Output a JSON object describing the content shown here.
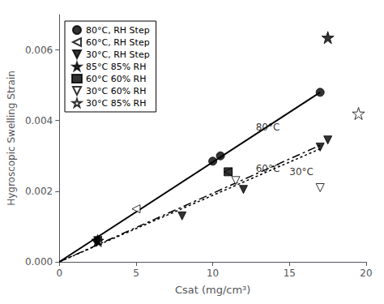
{
  "chart_data": {
    "type": "scatter",
    "xlabel": "Csat (mg/cm³)",
    "ylabel": "Hygroscopic Swelling Strain",
    "xlim": [
      0,
      20
    ],
    "ylim": [
      0,
      0.007
    ],
    "xticks": [
      0,
      5,
      10,
      15,
      20
    ],
    "yticks": [
      {
        "value": 0,
        "label": "0.000"
      },
      0.002,
      0.004,
      0.006
    ],
    "grid": false,
    "legend": "upper left",
    "series": [
      {
        "type": "line",
        "color": "black",
        "line_style": "solid",
        "x": [
          0,
          17.0
        ],
        "values": [
          0.0,
          0.0048
        ]
      },
      {
        "type": "line",
        "color": "black",
        "line_style": "dashdot",
        "x": [
          0,
          17.0
        ],
        "values": [
          0.0,
          0.0033
        ]
      },
      {
        "type": "line",
        "color": "black",
        "line_style": "dotted",
        "x": [
          0,
          17.0
        ],
        "values": [
          0.0,
          0.0032
        ]
      },
      {
        "type": "scatter",
        "name": "80°C, RH Step",
        "color": "black",
        "marker": "circle",
        "x": [
          2.5,
          10.0,
          10.5,
          17.0
        ],
        "values": [
          0.0006,
          0.00285,
          0.003,
          0.0048
        ]
      },
      {
        "type": "scatter",
        "name": "60°C, RH Step",
        "color": "black",
        "marker": "triangle-left-open",
        "x": [
          2.5,
          5.0,
          11.0
        ],
        "values": [
          0.0006,
          0.0015,
          0.00255
        ]
      },
      {
        "type": "scatter",
        "name": "30°C, RH Step",
        "color": "black",
        "marker": "triangle-down",
        "x": [
          2.5,
          8.0,
          12.0,
          17.0,
          17.5
        ],
        "values": [
          0.0006,
          0.0013,
          0.00205,
          0.00325,
          0.00345
        ]
      },
      {
        "type": "scatter",
        "name": "85°C 85% RH",
        "color": "black",
        "marker": "star",
        "x": [
          2.5,
          17.5
        ],
        "values": [
          0.0006,
          0.00635
        ]
      },
      {
        "type": "scatter",
        "name": "60°C 60% RH",
        "color": "black",
        "marker": "square",
        "x": [
          11.0
        ],
        "values": [
          0.00255
        ]
      },
      {
        "type": "scatter",
        "name": "30°C 60% RH",
        "color": "black",
        "marker": "triangle-down-open",
        "x": [
          11.5,
          17.0
        ],
        "values": [
          0.0023,
          0.0021
        ]
      },
      {
        "type": "scatter",
        "name": "30°C 85% RH",
        "color": "black",
        "marker": "star-open",
        "x": [
          19.5
        ],
        "values": [
          0.0042
        ]
      }
    ],
    "annotations": [
      {
        "text": "80°C",
        "x": 12.8,
        "y": 0.0038
      },
      {
        "text": "60°C",
        "x": 12.8,
        "y": 0.00265
      },
      {
        "text": "30°C",
        "x": 15.0,
        "y": 0.00255
      }
    ]
  }
}
